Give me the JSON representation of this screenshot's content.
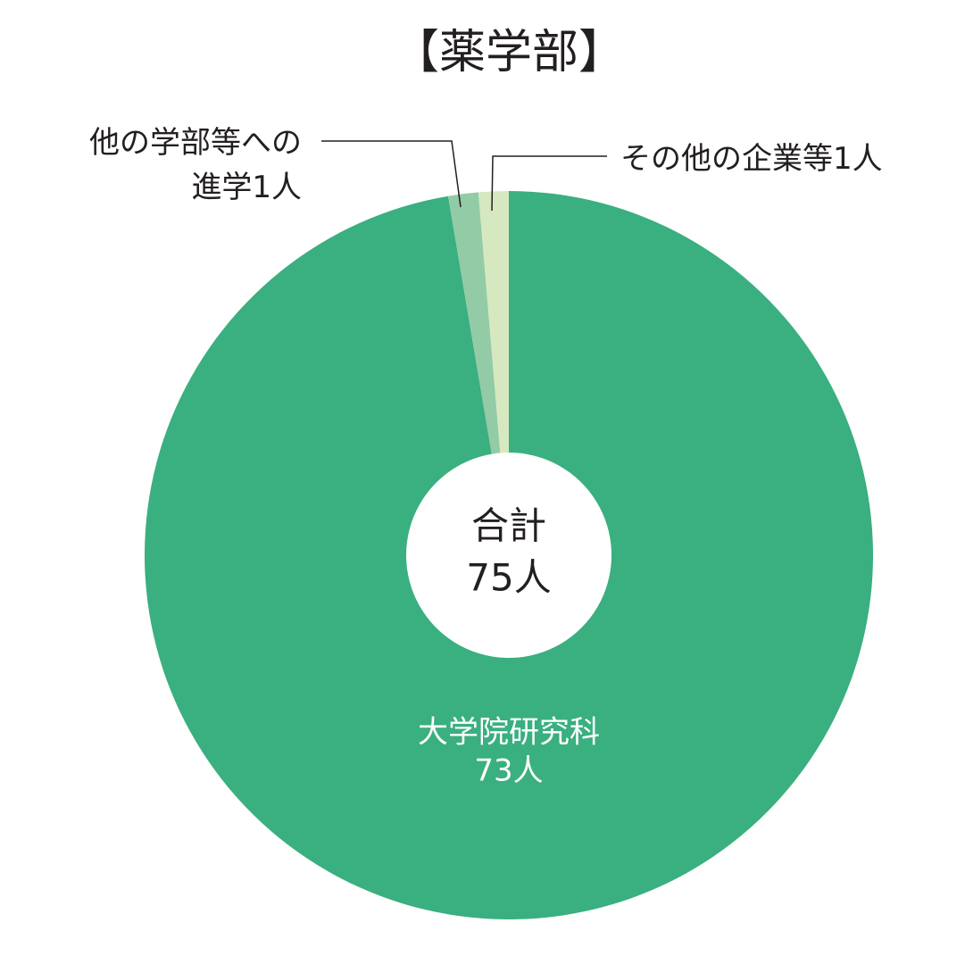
{
  "chart_data": {
    "type": "donut",
    "title": "【薬学部】",
    "categories": [
      "大学院研究科",
      "他の学部等への進学",
      "その他の企業等"
    ],
    "values": [
      73,
      1,
      1
    ],
    "value_labels": [
      "73人",
      "1人",
      "1人"
    ],
    "colors": [
      "#3aaf80",
      "#93cba6",
      "#d6e8c0"
    ],
    "center_label": "合計",
    "total": 75,
    "total_label": "75人"
  }
}
